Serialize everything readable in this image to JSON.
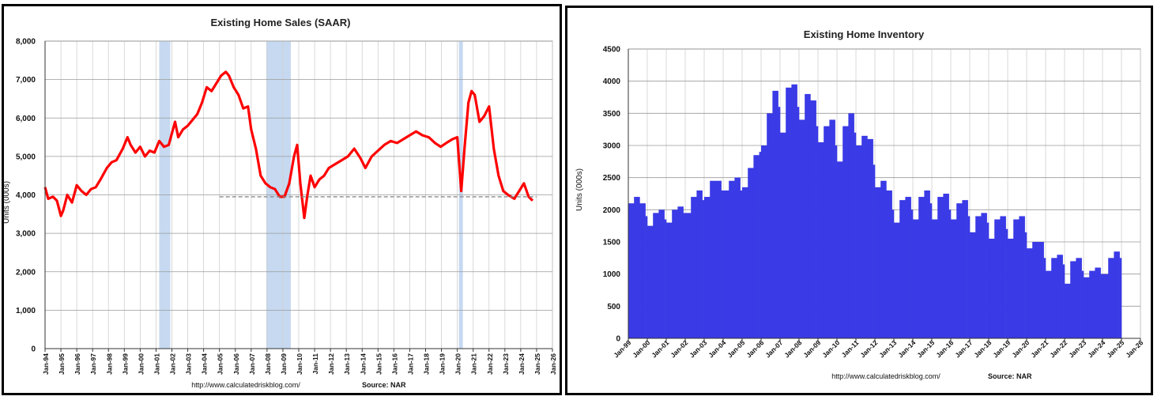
{
  "chart_data": [
    {
      "type": "line",
      "title": "Existing Home Sales (SAAR)",
      "ylabel": "Units (000s)",
      "ylim": [
        0,
        8000
      ],
      "yticks": [
        "0",
        "1,000",
        "2,000",
        "3,000",
        "4,000",
        "5,000",
        "6,000",
        "7,000",
        "8,000"
      ],
      "ytick_values": [
        0,
        1000,
        2000,
        3000,
        4000,
        5000,
        6000,
        7000,
        8000
      ],
      "xlim": [
        1994.0,
        2026.0
      ],
      "xticks": [
        "Jan-94",
        "Jan-95",
        "Jan-96",
        "Jan-97",
        "Jan-98",
        "Jan-99",
        "Jan-00",
        "Jan-01",
        "Jan-02",
        "Jan-03",
        "Jan-04",
        "Jan-05",
        "Jan-06",
        "Jan-07",
        "Jan-08",
        "Jan-09",
        "Jan-10",
        "Jan-11",
        "Jan-12",
        "Jan-13",
        "Jan-14",
        "Jan-15",
        "Jan-16",
        "Jan-17",
        "Jan-18",
        "Jan-19",
        "Jan-20",
        "Jan-21",
        "Jan-22",
        "Jan-23",
        "Jan-24",
        "Jan-25",
        "Jan-26"
      ],
      "grid": true,
      "recessions": [
        [
          2001.2,
          2001.9
        ],
        [
          2007.95,
          2009.5
        ],
        [
          2020.1,
          2020.35
        ]
      ],
      "reference_line": {
        "y": 3950,
        "x_start": 2005.0,
        "x_end": 2025.0
      },
      "series": [
        {
          "color": "#ff0000",
          "x": [
            1994.0,
            1994.2,
            1994.5,
            1994.75,
            1995.0,
            1995.15,
            1995.4,
            1995.7,
            1996.0,
            1996.3,
            1996.6,
            1996.9,
            1997.2,
            1997.5,
            1997.9,
            1998.2,
            1998.5,
            1998.9,
            1999.2,
            1999.4,
            1999.7,
            2000.0,
            2000.3,
            2000.6,
            2000.9,
            2001.2,
            2001.5,
            2001.8,
            2002.0,
            2002.2,
            2002.4,
            2002.7,
            2003.0,
            2003.3,
            2003.6,
            2003.9,
            2004.2,
            2004.5,
            2004.8,
            2005.1,
            2005.4,
            2005.6,
            2005.9,
            2006.2,
            2006.5,
            2006.8,
            2007.0,
            2007.3,
            2007.6,
            2007.9,
            2008.2,
            2008.5,
            2008.8,
            2009.1,
            2009.4,
            2009.7,
            2009.9,
            2010.1,
            2010.35,
            2010.55,
            2010.75,
            2011.0,
            2011.3,
            2011.6,
            2011.9,
            2012.3,
            2012.7,
            2013.1,
            2013.5,
            2013.9,
            2014.2,
            2014.6,
            2015.0,
            2015.4,
            2015.8,
            2016.2,
            2016.6,
            2017.0,
            2017.4,
            2017.8,
            2018.2,
            2018.6,
            2018.95,
            2019.3,
            2019.7,
            2020.0,
            2020.25,
            2020.45,
            2020.7,
            2020.9,
            2021.1,
            2021.4,
            2021.7,
            2022.0,
            2022.3,
            2022.6,
            2022.9,
            2023.2,
            2023.6,
            2023.9,
            2024.2,
            2024.5,
            2024.75
          ],
          "y": [
            4200,
            3900,
            3950,
            3850,
            3450,
            3600,
            4000,
            3800,
            4250,
            4100,
            4000,
            4150,
            4200,
            4400,
            4700,
            4850,
            4900,
            5200,
            5500,
            5300,
            5100,
            5250,
            5000,
            5150,
            5100,
            5400,
            5250,
            5300,
            5600,
            5900,
            5500,
            5700,
            5800,
            5950,
            6100,
            6400,
            6800,
            6700,
            6900,
            7100,
            7200,
            7100,
            6800,
            6600,
            6250,
            6300,
            5700,
            5200,
            4500,
            4300,
            4200,
            4150,
            3950,
            3950,
            4300,
            5000,
            5300,
            4300,
            3400,
            4000,
            4500,
            4200,
            4400,
            4500,
            4700,
            4800,
            4900,
            5000,
            5200,
            4950,
            4700,
            5000,
            5150,
            5300,
            5400,
            5350,
            5450,
            5550,
            5650,
            5550,
            5500,
            5350,
            5250,
            5350,
            5450,
            5500,
            4100,
            5200,
            6400,
            6700,
            6600,
            5900,
            6050,
            6300,
            5200,
            4500,
            4100,
            4000,
            3900,
            4100,
            4300,
            3950,
            3850
          ]
        }
      ],
      "source_url": "http://www.calculatedriskblog.com/",
      "source": "Source: NAR"
    },
    {
      "type": "bar",
      "title": "Existing Home Inventory",
      "ylabel": "Units (000s)",
      "ylim": [
        0,
        4500
      ],
      "yticks": [
        "0",
        "500",
        "1000",
        "1500",
        "2000",
        "2500",
        "3000",
        "3500",
        "4000",
        "4500"
      ],
      "ytick_values": [
        0,
        500,
        1000,
        1500,
        2000,
        2500,
        3000,
        3500,
        4000,
        4500
      ],
      "xlim": [
        1999.0,
        2026.0
      ],
      "xticks": [
        "Jan-99",
        "Jan-00",
        "Jan-01",
        "Jan-02",
        "Jan-03",
        "Jan-04",
        "Jan-05",
        "Jan-06",
        "Jan-07",
        "Jan-08",
        "Jan-09",
        "Jan-10",
        "Jan-11",
        "Jan-12",
        "Jan-13",
        "Jan-14",
        "Jan-15",
        "Jan-16",
        "Jan-17",
        "Jan-18",
        "Jan-19",
        "Jan-20",
        "Jan-21",
        "Jan-22",
        "Jan-23",
        "Jan-24",
        "Jan-25",
        "Jan-26"
      ],
      "grid": true,
      "series": [
        {
          "color": "#3a3ae6",
          "x": [
            1999.0,
            1999.3,
            1999.6,
            1999.9,
            2000.0,
            2000.3,
            2000.6,
            2000.9,
            2001.0,
            2001.3,
            2001.6,
            2001.9,
            2002.0,
            2002.3,
            2002.6,
            2002.9,
            2003.0,
            2003.3,
            2003.6,
            2003.9,
            2004.0,
            2004.3,
            2004.6,
            2004.9,
            2005.0,
            2005.3,
            2005.6,
            2005.9,
            2006.0,
            2006.3,
            2006.6,
            2006.9,
            2007.0,
            2007.3,
            2007.6,
            2007.9,
            2008.0,
            2008.3,
            2008.6,
            2008.9,
            2009.0,
            2009.3,
            2009.6,
            2009.9,
            2010.0,
            2010.3,
            2010.6,
            2010.9,
            2011.0,
            2011.3,
            2011.6,
            2011.9,
            2012.0,
            2012.3,
            2012.6,
            2012.9,
            2013.0,
            2013.3,
            2013.6,
            2013.9,
            2014.0,
            2014.3,
            2014.6,
            2014.9,
            2015.0,
            2015.3,
            2015.6,
            2015.9,
            2016.0,
            2016.3,
            2016.6,
            2016.9,
            2017.0,
            2017.3,
            2017.6,
            2017.9,
            2018.0,
            2018.3,
            2018.6,
            2018.9,
            2019.0,
            2019.3,
            2019.6,
            2019.9,
            2020.0,
            2020.3,
            2020.6,
            2020.9,
            2021.0,
            2021.3,
            2021.6,
            2021.9,
            2022.0,
            2022.3,
            2022.6,
            2022.9,
            2023.0,
            2023.3,
            2023.6,
            2023.9,
            2024.0,
            2024.3,
            2024.6,
            2024.9
          ],
          "y": [
            2100,
            2200,
            2100,
            1900,
            1750,
            1950,
            2000,
            1850,
            1800,
            2000,
            2050,
            1950,
            1950,
            2200,
            2300,
            2150,
            2200,
            2450,
            2450,
            2300,
            2300,
            2450,
            2500,
            2300,
            2350,
            2650,
            2850,
            2900,
            3000,
            3500,
            3850,
            3600,
            3200,
            3900,
            3950,
            3600,
            3400,
            3800,
            3700,
            3300,
            3050,
            3300,
            3400,
            3000,
            2750,
            3300,
            3500,
            3200,
            3000,
            3150,
            3100,
            2700,
            2350,
            2450,
            2300,
            2000,
            1800,
            2150,
            2200,
            2000,
            1850,
            2200,
            2300,
            2100,
            1850,
            2200,
            2250,
            2000,
            1850,
            2100,
            2150,
            1900,
            1650,
            1900,
            1950,
            1800,
            1550,
            1850,
            1900,
            1700,
            1550,
            1850,
            1900,
            1650,
            1400,
            1500,
            1500,
            1250,
            1050,
            1250,
            1300,
            1150,
            850,
            1200,
            1250,
            1050,
            950,
            1050,
            1100,
            1000,
            1000,
            1250,
            1350,
            1250
          ]
        }
      ],
      "source_url": "http://www.calculatedriskblog.com/",
      "source": "Source: NAR"
    }
  ]
}
